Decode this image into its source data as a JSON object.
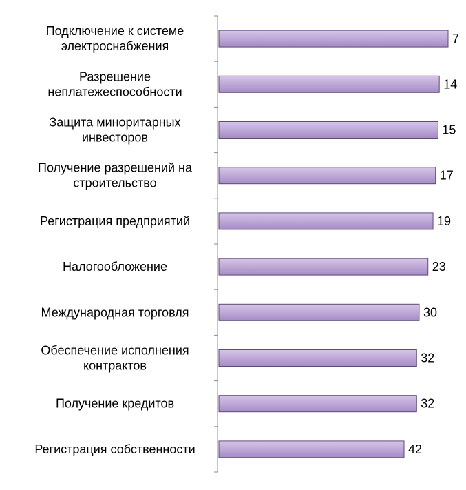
{
  "chart_data": {
    "type": "bar",
    "orientation": "horizontal",
    "title": "",
    "xlabel": "",
    "ylabel": "",
    "categories": [
      [
        "Подключение к системе",
        "электроснабжения"
      ],
      [
        "Разрешение",
        "неплатежеспособности"
      ],
      [
        "Защита миноритарных",
        "инвесторов"
      ],
      [
        "Получение разрешений на",
        "строительство"
      ],
      [
        "Регистрация предприятий"
      ],
      [
        "Налогообложение"
      ],
      [
        "Международная торговля"
      ],
      [
        "Обеспечение исполнения",
        "контрактов"
      ],
      [
        "Получение кредитов"
      ],
      [
        "Регистрация собственности"
      ]
    ],
    "values": [
      7,
      14,
      15,
      17,
      19,
      23,
      30,
      32,
      32,
      42
    ],
    "value_labels": [
      "7",
      "14",
      "15",
      "17",
      "19",
      "23",
      "30",
      "32",
      "32",
      "42"
    ],
    "axis_reversed": true,
    "grid": false,
    "legend": "none",
    "colors": {
      "bar_fill_top": "#d6c6e8",
      "bar_fill_bottom": "#a58bc6",
      "bar_stroke": "#5d4a78",
      "axis": "#8c8c8c"
    }
  }
}
